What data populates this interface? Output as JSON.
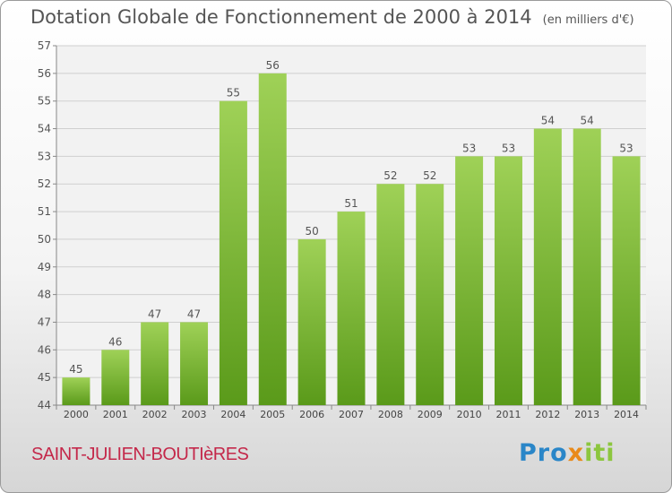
{
  "title": "Dotation Globale de Fonctionnement de 2000 à 2014",
  "unit": "(en milliers d'€)",
  "commune": "SAINT-JULIEN-BOUTIèRES",
  "logo": {
    "part1": "Pro",
    "part2": "x",
    "part3": "iti"
  },
  "colors": {
    "bar_light": "#9fd157",
    "bar_dark": "#5a9a1a",
    "text": "#555555",
    "commune": "#c4284a"
  },
  "chart_data": {
    "type": "bar",
    "title": "Dotation Globale de Fonctionnement de 2000 à 2014",
    "subtitle": "(en milliers d'€)",
    "categories": [
      "2000",
      "2001",
      "2002",
      "2003",
      "2004",
      "2005",
      "2006",
      "2007",
      "2008",
      "2009",
      "2010",
      "2011",
      "2012",
      "2013",
      "2014"
    ],
    "values": [
      45,
      46,
      47,
      47,
      55,
      56,
      50,
      51,
      52,
      52,
      53,
      53,
      54,
      54,
      53
    ],
    "ylim": [
      44,
      57
    ],
    "yticks": [
      44,
      45,
      46,
      47,
      48,
      49,
      50,
      51,
      52,
      53,
      54,
      55,
      56,
      57
    ],
    "grid": true,
    "legend": "none"
  }
}
